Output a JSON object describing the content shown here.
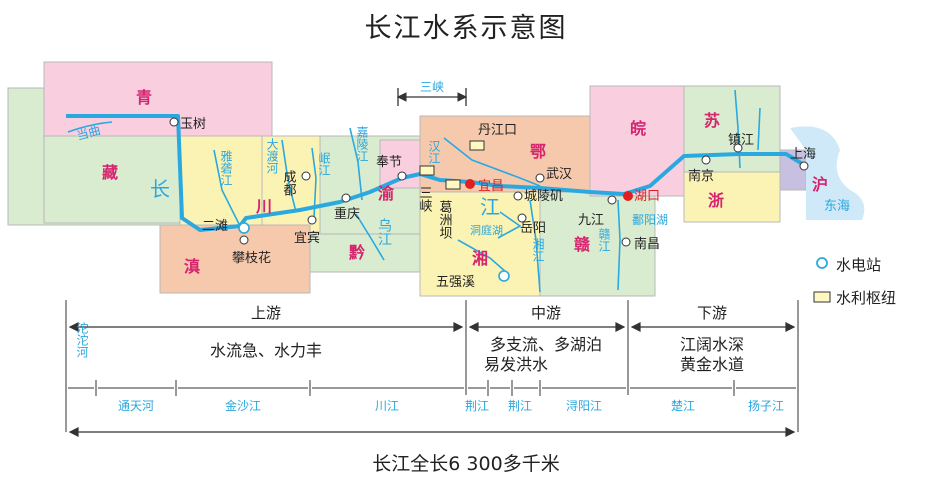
{
  "title": "长江水系示意图",
  "provinces": {
    "qing": "青",
    "zang": "藏",
    "chuan": "川",
    "dian": "滇",
    "qian": "黔",
    "yu": "渝",
    "e": "鄂",
    "xiang": "湘",
    "gan": "赣",
    "wan": "皖",
    "su": "苏",
    "zhe": "浙",
    "hu": "沪"
  },
  "rivers": {
    "tongtian_vert": "当曲",
    "chang": "长",
    "jiang_mid": "江",
    "jiang_chuan": "江",
    "yalong": "雅砻江",
    "dadu": "大渡河",
    "min": "岷江",
    "jialing": "嘉陵江",
    "wu": "乌江",
    "han": "汉江",
    "gan": "赣江",
    "xiang": "湘江",
    "dongting": "洞庭湖",
    "poyang": "鄱阳湖",
    "donghai": "东海"
  },
  "cities": {
    "yushu": "玉树",
    "ertan": "二滩",
    "panzhihua": "攀枝花",
    "chengdu": "成都",
    "chongqing": "重庆",
    "yibin": "宜宾",
    "fengjie": "奉节",
    "yichang": "宜昌",
    "danjiangkou": "丹江口",
    "wuhan": "武汉",
    "chenglingji": "城陵矶",
    "yueyang": "岳阳",
    "jiujiang": "九江",
    "hukou": "湖口",
    "nanchang": "南昌",
    "nanjing": "南京",
    "zhenjiang": "镇江",
    "shanghai": "上海",
    "wuqiangxi": "五强溪",
    "gezhouba": "葛洲坝",
    "sanxia_label": "三峡"
  },
  "three_gorges": "三峡",
  "legend": {
    "hydro": "水电站",
    "hub": "水利枢纽"
  },
  "reaches": {
    "upper": "上游",
    "middle": "中游",
    "lower": "下游",
    "upper_desc": "水流急、水力丰",
    "middle_desc_1": "多支流、多湖泊",
    "middle_desc_2": "易发洪水",
    "lower_desc_1": "江阔水深",
    "lower_desc_2": "黄金水道"
  },
  "segments": {
    "tuotuo": "沱沱河",
    "tongtian": "通天河",
    "jinsha": "金沙江",
    "chuanjiang": "川江",
    "jingjiang": "荆江",
    "jingjiang2": "荆江",
    "xunyang": "浔阳江",
    "chu": "楚江",
    "yangzi": "扬子江"
  },
  "total_length": "长江全长6 300多千米",
  "colors": {
    "river": "#29a9e0",
    "label_blue": "#2aa7df",
    "province_red": "#d6246e",
    "city_red": "#e02020",
    "qing_zone": "#f9cfe0",
    "green_zone": "#cfe8c4",
    "yellow_zone": "#fbf3b4",
    "orange_zone": "#f6c9ad"
  }
}
